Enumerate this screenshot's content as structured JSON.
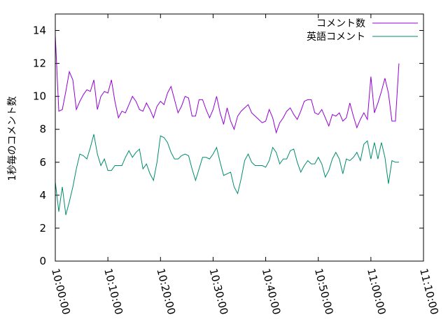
{
  "chart_data": {
    "type": "line",
    "title": "",
    "xlabel": "",
    "ylabel": "1秒毎のコメント数",
    "xlim": [
      "10:00:00",
      "11:10:00"
    ],
    "ylim": [
      0,
      15
    ],
    "x_ticks": [
      "10:00:00",
      "10:10:00",
      "10:20:00",
      "10:30:00",
      "10:40:00",
      "10:50:00",
      "11:00:00",
      "11:10:00"
    ],
    "y_ticks": [
      "0",
      "2",
      "4",
      "6",
      "8",
      "10",
      "12",
      "14"
    ],
    "legend_position": "top-right",
    "x_step_seconds": 40,
    "x_start": "10:00:00",
    "series": [
      {
        "name": "コメント数",
        "color": "#9400d3",
        "values": [
          13.7,
          9.1,
          9.2,
          10.3,
          11.5,
          11.0,
          9.2,
          9.7,
          10.1,
          10.4,
          10.3,
          11.0,
          9.2,
          10.0,
          10.3,
          10.2,
          11.0,
          9.7,
          8.7,
          9.1,
          9.0,
          9.5,
          10.0,
          9.7,
          9.2,
          9.1,
          9.6,
          9.2,
          8.7,
          9.4,
          9.7,
          9.5,
          10.2,
          10.6,
          9.8,
          9.0,
          9.4,
          10.0,
          9.9,
          8.8,
          8.8,
          9.8,
          9.8,
          9.2,
          8.7,
          9.2,
          10.0,
          9.0,
          8.3,
          9.3,
          8.5,
          8.0,
          8.8,
          9.1,
          9.3,
          9.5,
          9.0,
          8.8,
          8.6,
          8.4,
          8.5,
          9.2,
          8.7,
          7.8,
          8.4,
          8.7,
          9.1,
          9.3,
          8.9,
          8.6,
          9.1,
          9.7,
          9.8,
          9.8,
          9.0,
          8.9,
          9.2,
          8.7,
          8.2,
          8.9,
          8.8,
          9.0,
          8.5,
          8.7,
          9.6,
          8.8,
          8.1,
          8.6,
          9.0,
          8.6,
          11.2,
          9.0,
          9.6,
          10.3,
          11.1,
          10.2,
          8.5,
          8.5,
          12.0
        ]
      },
      {
        "name": "英語コメント",
        "color": "#008c6e",
        "values": [
          4.8,
          3.0,
          4.5,
          2.8,
          3.6,
          4.5,
          5.6,
          6.5,
          6.4,
          6.2,
          6.9,
          7.7,
          6.5,
          5.8,
          6.2,
          5.5,
          5.5,
          5.8,
          5.8,
          5.8,
          6.3,
          6.7,
          6.3,
          6.6,
          6.8,
          5.6,
          5.9,
          5.3,
          4.9,
          6.0,
          7.6,
          7.5,
          7.2,
          6.6,
          6.2,
          6.2,
          6.4,
          6.5,
          6.4,
          5.6,
          4.9,
          5.6,
          6.3,
          6.3,
          6.2,
          6.5,
          6.9,
          6.0,
          5.2,
          5.3,
          5.4,
          4.5,
          4.1,
          5.0,
          6.1,
          6.5,
          6.0,
          5.8,
          5.8,
          5.8,
          5.7,
          6.1,
          6.9,
          6.6,
          5.9,
          6.2,
          6.2,
          6.7,
          6.8,
          6.0,
          5.4,
          5.8,
          6.1,
          5.9,
          5.9,
          6.3,
          5.9,
          5.1,
          5.5,
          6.2,
          6.6,
          6.2,
          5.3,
          6.2,
          6.1,
          6.3,
          6.6,
          6.1,
          7.1,
          7.3,
          6.2,
          7.2,
          6.2,
          7.2,
          6.3,
          4.7,
          6.1,
          6.0,
          6.0
        ]
      }
    ]
  }
}
